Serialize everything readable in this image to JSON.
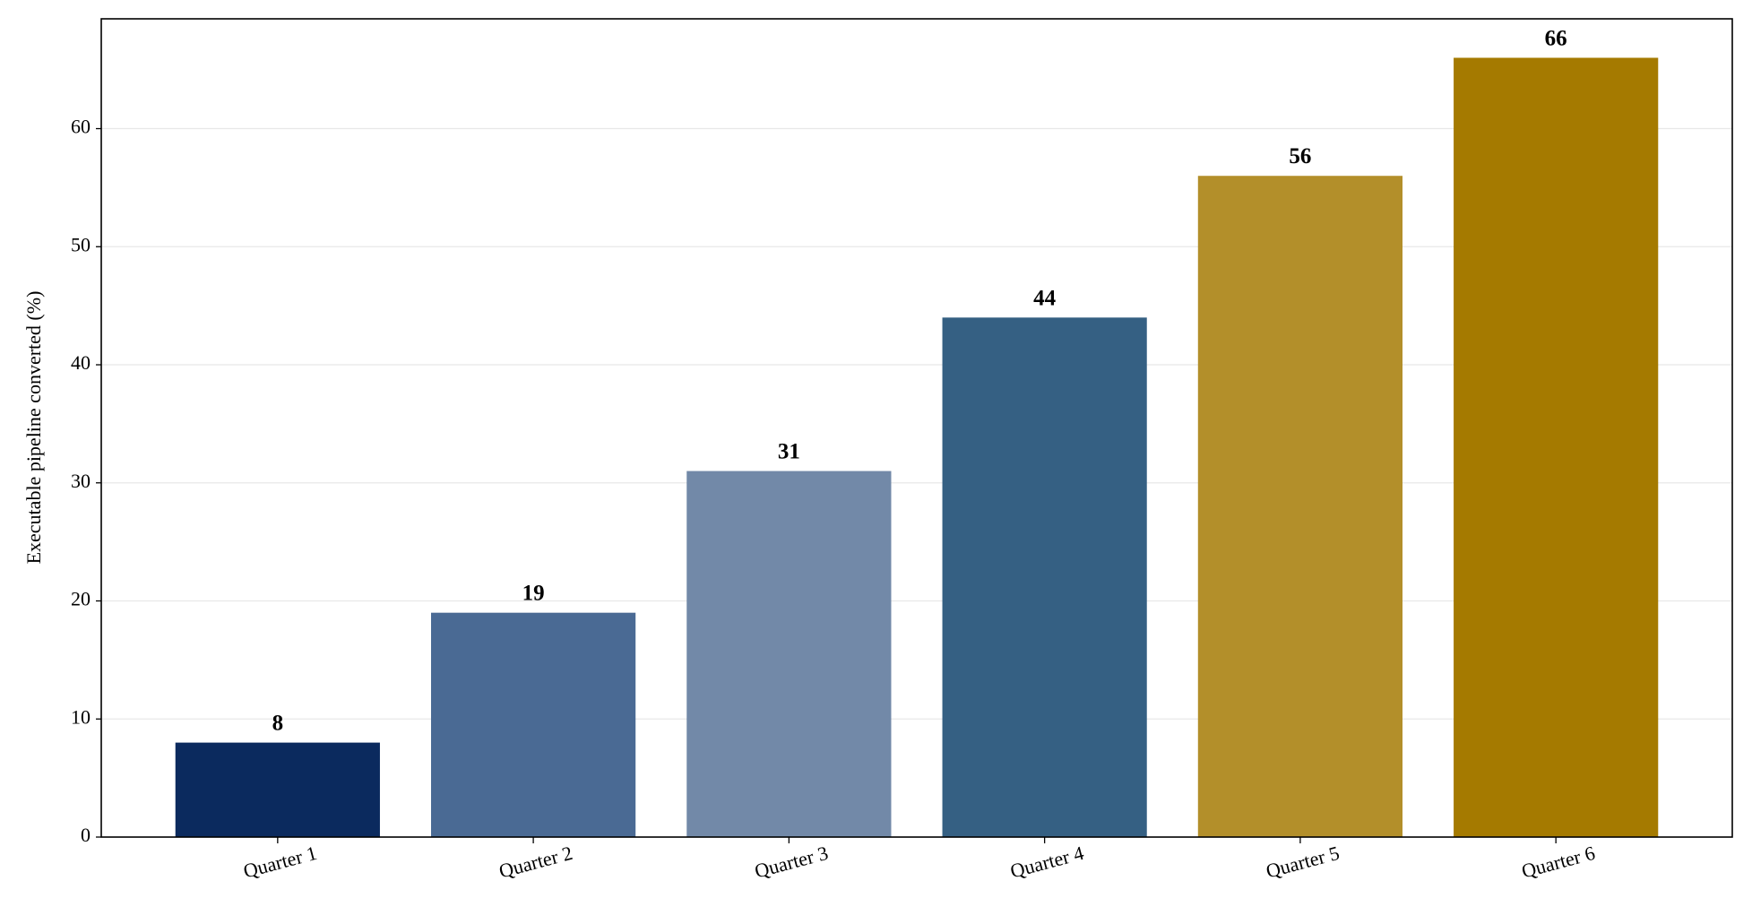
{
  "chart_data": {
    "type": "bar",
    "ylabel": "Executable pipeline converted (%)",
    "categories": [
      "Quarter 1",
      "Quarter 2",
      "Quarter 3",
      "Quarter 4",
      "Quarter 5",
      "Quarter 6"
    ],
    "values": [
      8,
      19,
      31,
      44,
      56,
      66
    ],
    "colors": [
      "#0b2a5e",
      "#4a6a94",
      "#7289a8",
      "#356083",
      "#b38f2a",
      "#a57a00"
    ],
    "ylim": [
      0,
      69.3
    ],
    "yticks": [
      0,
      10,
      20,
      30,
      40,
      50,
      60
    ],
    "grid": true
  }
}
